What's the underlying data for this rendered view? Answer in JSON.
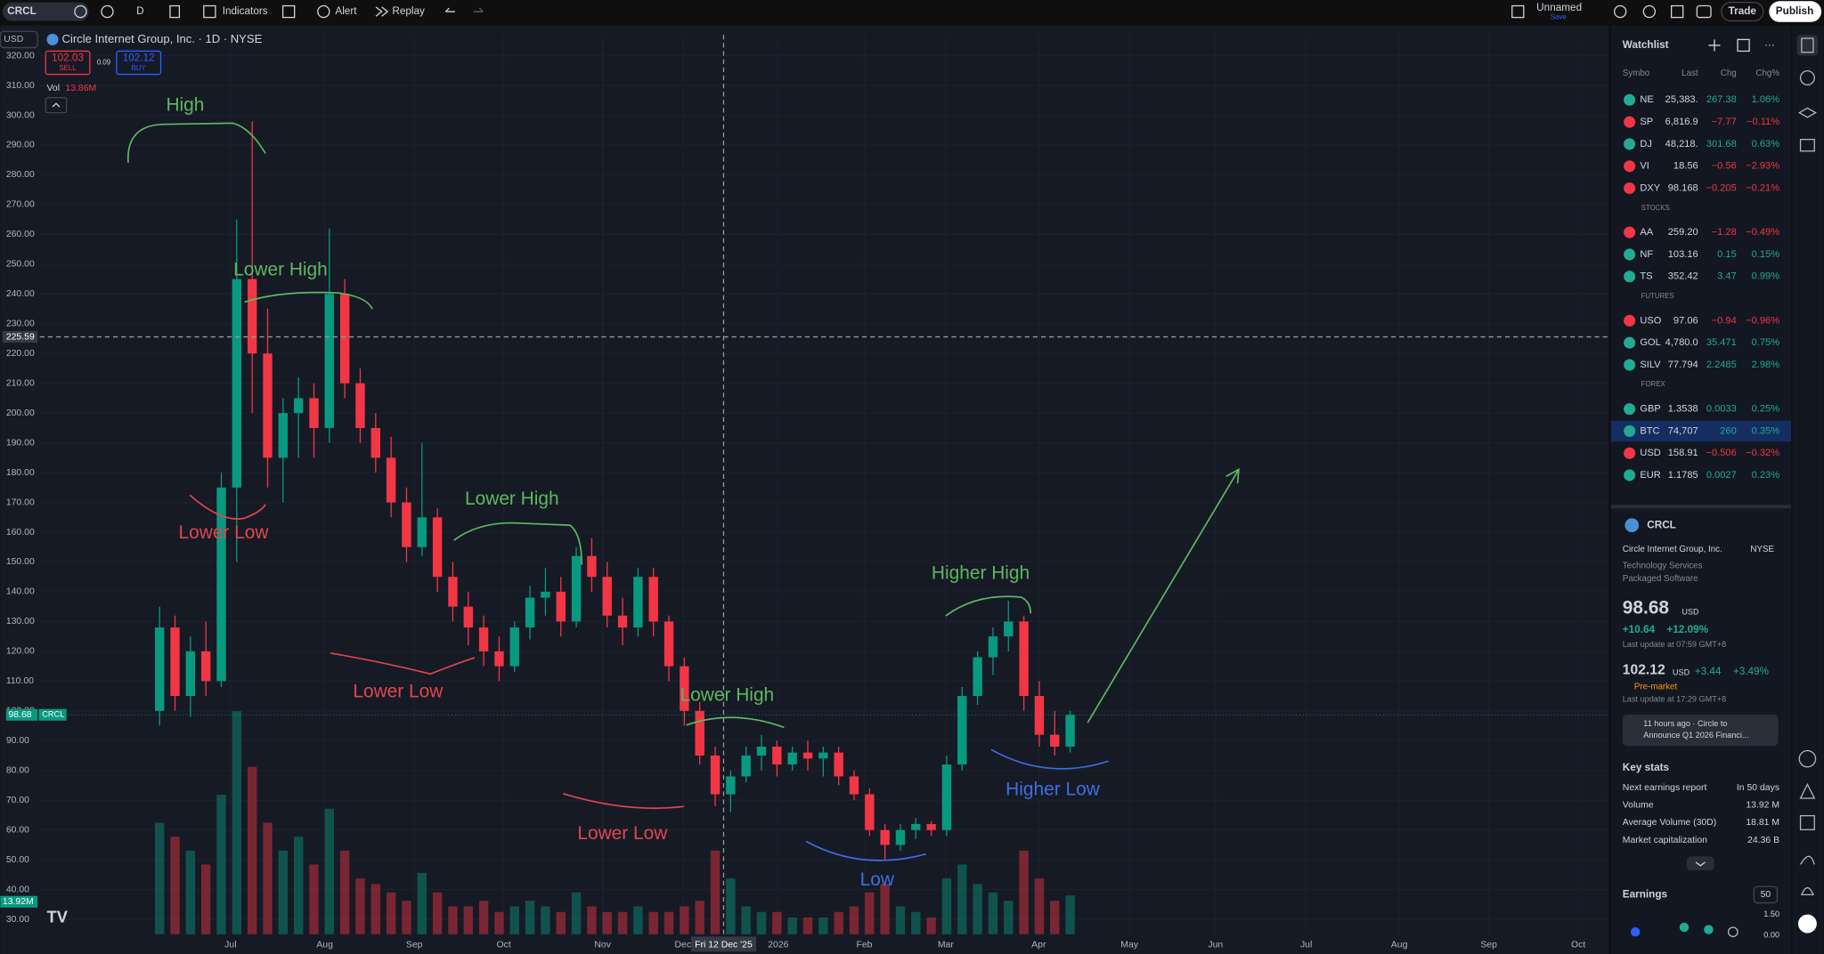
{
  "toolbar": {
    "symbol": "CRCL",
    "interval": "D",
    "indicators": "Indicators",
    "alert": "Alert",
    "replay": "Replay",
    "layout_name": "Unnamed",
    "save": "Save",
    "trade": "Trade",
    "publish": "Publish"
  },
  "legend": {
    "currency": "USD",
    "title": "Circle Internet Group, Inc. · 1D · NYSE",
    "sell_price": "102.03",
    "sell": "SELL",
    "spread": "0.09",
    "buy_price": "102.12",
    "buy": "BUY",
    "volume_label": "Vol",
    "volume_value": "13.86M"
  },
  "chart_data": {
    "type": "candlestick",
    "open": [
      100,
      128,
      105,
      120,
      110,
      175,
      245,
      220,
      185,
      200,
      205,
      195,
      240,
      210,
      195,
      185,
      170,
      155,
      165,
      145,
      135,
      128,
      120,
      115,
      128,
      138,
      140,
      130,
      152,
      145,
      132,
      128,
      145,
      130,
      115,
      100,
      85,
      72,
      78,
      85,
      88,
      82,
      86,
      84,
      86,
      78,
      72,
      60,
      55,
      60,
      62,
      60,
      82,
      105,
      118,
      125,
      130,
      105,
      92,
      88
    ],
    "high": [
      135,
      132,
      125,
      130,
      180,
      265,
      298,
      235,
      205,
      212,
      210,
      262,
      245,
      215,
      200,
      192,
      175,
      190,
      168,
      150,
      140,
      132,
      125,
      130,
      142,
      148,
      145,
      155,
      158,
      150,
      138,
      148,
      148,
      132,
      118,
      103,
      88,
      80,
      88,
      92,
      90,
      88,
      90,
      88,
      88,
      80,
      74,
      62,
      62,
      64,
      63,
      85,
      108,
      120,
      128,
      137,
      132,
      110,
      100,
      100
    ],
    "low": [
      95,
      100,
      98,
      105,
      108,
      150,
      200,
      175,
      170,
      185,
      185,
      190,
      205,
      190,
      180,
      165,
      150,
      152,
      140,
      130,
      122,
      115,
      110,
      113,
      124,
      132,
      125,
      128,
      140,
      128,
      122,
      125,
      125,
      110,
      95,
      82,
      68,
      66,
      76,
      80,
      78,
      80,
      80,
      78,
      75,
      70,
      58,
      50,
      53,
      57,
      58,
      58,
      80,
      102,
      112,
      120,
      100,
      88,
      85,
      86
    ],
    "close": [
      128,
      105,
      120,
      110,
      175,
      245,
      220,
      185,
      200,
      205,
      195,
      240,
      210,
      195,
      185,
      170,
      155,
      165,
      145,
      135,
      128,
      120,
      115,
      128,
      138,
      140,
      130,
      152,
      145,
      132,
      128,
      145,
      130,
      115,
      100,
      85,
      72,
      78,
      85,
      88,
      82,
      86,
      84,
      86,
      78,
      72,
      60,
      55,
      60,
      62,
      60,
      82,
      105,
      118,
      125,
      130,
      105,
      92,
      88,
      98.68
    ],
    "volume": [
      40,
      35,
      30,
      25,
      50,
      80,
      60,
      40,
      30,
      35,
      25,
      45,
      30,
      20,
      18,
      15,
      12,
      22,
      15,
      10,
      10,
      12,
      8,
      10,
      12,
      10,
      8,
      15,
      10,
      8,
      8,
      10,
      8,
      8,
      10,
      12,
      30,
      20,
      10,
      8,
      8,
      6,
      6,
      6,
      8,
      10,
      15,
      18,
      10,
      8,
      6,
      20,
      25,
      18,
      15,
      12,
      30,
      20,
      12,
      13.92
    ],
    "up_color": "#089981",
    "down_color": "#f23645",
    "ylim": [
      25,
      327
    ],
    "yticks": [
      {
        "value": 30,
        "label": "30.00"
      },
      {
        "value": 40,
        "label": "40.00"
      },
      {
        "value": 50,
        "label": "50.00"
      },
      {
        "value": 60,
        "label": "60.00"
      },
      {
        "value": 70,
        "label": "70.00"
      },
      {
        "value": 80,
        "label": "80.00"
      },
      {
        "value": 90,
        "label": "90.00"
      },
      {
        "value": 100,
        "label": "100.00"
      },
      {
        "value": 110,
        "label": "110.00"
      },
      {
        "value": 120,
        "label": "120.00"
      },
      {
        "value": 130,
        "label": "130.00"
      },
      {
        "value": 140,
        "label": "140.00"
      },
      {
        "value": 150,
        "label": "150.00"
      },
      {
        "value": 160,
        "label": "160.00"
      },
      {
        "value": 170,
        "label": "170.00"
      },
      {
        "value": 180,
        "label": "180.00"
      },
      {
        "value": 190,
        "label": "190.00"
      },
      {
        "value": 200,
        "label": "200.00"
      },
      {
        "value": 210,
        "label": "210.00"
      },
      {
        "value": 220,
        "label": "220.00"
      },
      {
        "value": 230,
        "label": "230.00"
      },
      {
        "value": 240,
        "label": "240.00"
      },
      {
        "value": 250,
        "label": "250.00"
      },
      {
        "value": 260,
        "label": "260.00"
      },
      {
        "value": 270,
        "label": "270.00"
      },
      {
        "value": 280,
        "label": "280.00"
      },
      {
        "value": 290,
        "label": "290.00"
      },
      {
        "value": 300,
        "label": "300.00"
      },
      {
        "value": 310,
        "label": "310.00"
      },
      {
        "value": 320,
        "label": "320.00"
      }
    ],
    "time_labels": [
      "Jul",
      "Aug",
      "Sep",
      "Oct",
      "Nov",
      "Dec",
      "2026",
      "Feb",
      "Mar",
      "Apr",
      "May",
      "Jun",
      "Jul",
      "Aug",
      "Sep",
      "Oct"
    ],
    "crosshair_date": "Fri 12 Dec '25",
    "crosshair_price": 225.59,
    "last_symbol": "CRCL",
    "volume_tag": "13.92M",
    "annotations": [
      {
        "text": "High",
        "color": "#5cb860"
      },
      {
        "text": "Lower High",
        "color": "#5cb860"
      },
      {
        "text": "Lower Low",
        "color": "#e0474f"
      },
      {
        "text": "Lower High",
        "color": "#5cb860"
      },
      {
        "text": "Lower Low",
        "color": "#e0474f"
      },
      {
        "text": "Lower High",
        "color": "#5cb860"
      },
      {
        "text": "Lower Low",
        "color": "#e0474f"
      },
      {
        "text": "Low",
        "color": "#3d6fe0"
      },
      {
        "text": "Higher High",
        "color": "#5cb860"
      },
      {
        "text": "Higher Low",
        "color": "#3d6fe0"
      }
    ]
  },
  "watchlist": {
    "title": "Watchlist",
    "columns": [
      "Symbo",
      "Last",
      "Chg",
      "Chg%"
    ],
    "rows": [
      {
        "symbol": "NE",
        "last": "25,383.",
        "chg": "267.38",
        "chgp": "1.06%"
      },
      {
        "symbol": "SP",
        "last": "6,816.9",
        "chg": "−7.77",
        "chgp": "−0.11%"
      },
      {
        "symbol": "DJ",
        "last": "48,218.",
        "chg": "301.68",
        "chgp": "0.63%"
      },
      {
        "symbol": "VI",
        "last": "18.56",
        "chg": "−0.56",
        "chgp": "−2.93%"
      },
      {
        "symbol": "DXY",
        "last": "98.168",
        "chg": "−0.205",
        "chgp": "−0.21%"
      },
      {
        "section": "STOCKS"
      },
      {
        "symbol": "AA",
        "last": "259.20",
        "chg": "−1.28",
        "chgp": "−0.49%"
      },
      {
        "symbol": "NF",
        "last": "103.16",
        "chg": "0.15",
        "chgp": "0.15%"
      },
      {
        "symbol": "TS",
        "last": "352.42",
        "chg": "3.47",
        "chgp": "0.99%"
      },
      {
        "section": "FUTURES"
      },
      {
        "symbol": "USO",
        "last": "97.06",
        "chg": "−0.94",
        "chgp": "−0.96%"
      },
      {
        "symbol": "GOL",
        "last": "4,780.0",
        "chg": "35.471",
        "chgp": "0.75%"
      },
      {
        "symbol": "SILV",
        "last": "77.794",
        "chg": "2.2485",
        "chgp": "2.98%"
      },
      {
        "section": "FOREX"
      },
      {
        "symbol": "GBP",
        "last": "1.3538",
        "chg": "0.0033",
        "chgp": "0.25%"
      },
      {
        "symbol": "BTC",
        "last": "74,707",
        "chg": "260",
        "chgp": "0.35%"
      },
      {
        "symbol": "USD",
        "last": "158.91",
        "chg": "−0.506",
        "chgp": "−0.32%"
      },
      {
        "symbol": "EUR",
        "last": "1.1785",
        "chg": "0.0027",
        "chgp": "0.23%"
      }
    ]
  },
  "details": {
    "symbol": "CRCL",
    "name": "Circle Internet Group, Inc.",
    "exchange": "NYSE",
    "sector": "Technology Services",
    "industry": "Packaged Software",
    "price": "98.68",
    "currency": "USD",
    "change": "+10.64",
    "change_pct": "+12.09%",
    "update1": "Last update at 07:59 GMT+8",
    "pre_price": "102.12",
    "pre_currency": "USD",
    "pre_change": "+3.44",
    "pre_change_pct": "+3.49%",
    "pre_label": "Pre-market",
    "update2": "Last update at 17:29 GMT+8",
    "news1": "11 hours ago · Circle to",
    "news2": "Announce Q1 2026 Financi...",
    "key_stats": "Key stats",
    "stats": [
      [
        "Next earnings report",
        "In 50 days"
      ],
      [
        "Volume",
        "13.92 M"
      ],
      [
        "Average Volume (30D)",
        "18.81 M"
      ],
      [
        "Market capitalization",
        "24.36 B"
      ]
    ],
    "earnings": "Earnings",
    "earnings_days": "50",
    "earn_tick_top": "1.50",
    "earn_tick_bottom": "0.00"
  }
}
